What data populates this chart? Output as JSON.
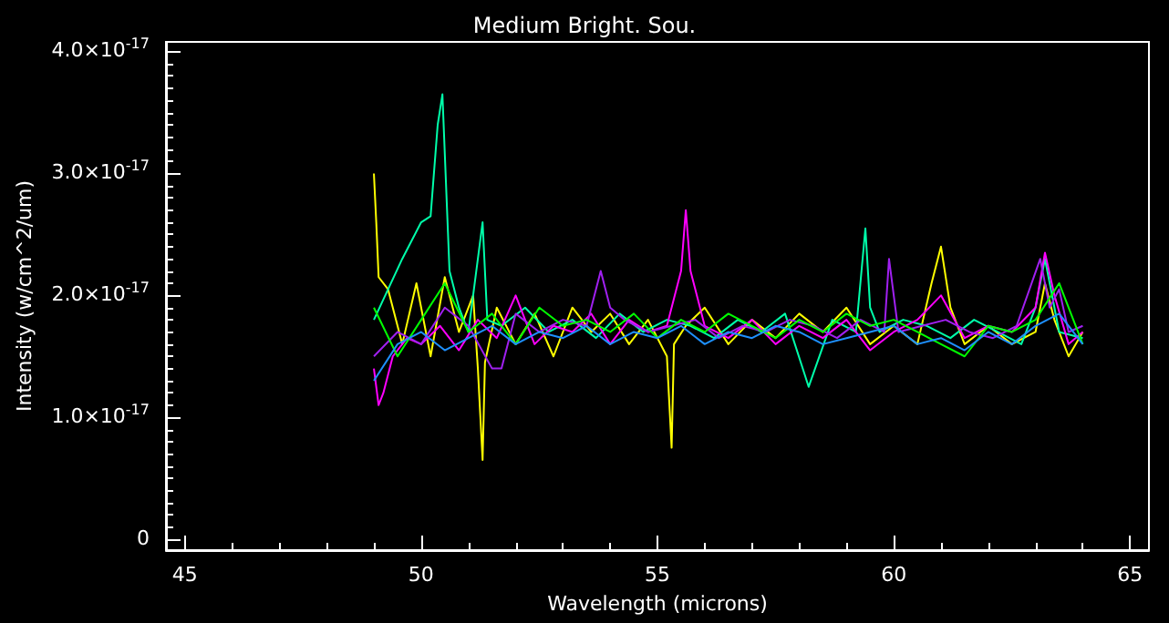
{
  "chart_data": {
    "type": "line",
    "title": "Medium Bright. Sou.",
    "xlabel": "Wavelength (microns)",
    "ylabel": "Intensity (w/cm^2/um)",
    "xlim": [
      44.6,
      65.4
    ],
    "xticks": [
      45,
      50,
      55,
      60,
      65
    ],
    "ylim": [
      -9e-19,
      4.08e-17
    ],
    "yticks": [
      0,
      {
        "value": 1e-17,
        "label": "1.0×10$^{-17}$"
      },
      {
        "value": 2e-17,
        "label": "2.0×10$^{-17}$"
      },
      {
        "value": 3e-17,
        "label": "3.0×10$^{-17}$"
      },
      {
        "value": 4e-17,
        "label": "4.0×10$^{-17}$"
      }
    ],
    "grid": false,
    "x": [
      49.0,
      49.5,
      50.0,
      50.5,
      51.0,
      51.5,
      52.0,
      52.5,
      53.0,
      53.5,
      54.0,
      54.5,
      55.0,
      55.5,
      56.0,
      56.5,
      57.0,
      57.5,
      58.0,
      58.5,
      59.0,
      59.5,
      60.0,
      60.5,
      61.0,
      61.5,
      62.0,
      62.5,
      63.0,
      63.5,
      64.0
    ],
    "series": [
      {
        "color": "#ffff00",
        "x": [
          49.0,
          49.05,
          49.1,
          49.3,
          49.6,
          49.9,
          50.2,
          50.5,
          50.8,
          51.1,
          51.2,
          51.3,
          51.35,
          51.6,
          52.0,
          52.4,
          52.8,
          53.2,
          53.6,
          54.0,
          54.4,
          54.8,
          55.2,
          55.3,
          55.35,
          55.6,
          56.0,
          56.5,
          57.0,
          57.5,
          58.0,
          58.5,
          59.0,
          59.5,
          60.0,
          60.5,
          60.8,
          61.0,
          61.2,
          61.5,
          62.0,
          62.5,
          63.0,
          63.2,
          63.4,
          63.7,
          64.0
        ],
        "values": [
          3e-17,
          2.6e-17,
          2.15e-17,
          2.05e-17,
          1.6e-17,
          2.1e-17,
          1.5e-17,
          2.15e-17,
          1.7e-17,
          2e-17,
          1.4e-17,
          6.5e-18,
          1.45e-17,
          1.9e-17,
          1.6e-17,
          1.85e-17,
          1.5e-17,
          1.9e-17,
          1.7e-17,
          1.85e-17,
          1.6e-17,
          1.8e-17,
          1.5e-17,
          7.5e-18,
          1.6e-17,
          1.75e-17,
          1.9e-17,
          1.6e-17,
          1.8e-17,
          1.65e-17,
          1.85e-17,
          1.7e-17,
          1.9e-17,
          1.6e-17,
          1.75e-17,
          1.6e-17,
          2.1e-17,
          2.4e-17,
          1.9e-17,
          1.6e-17,
          1.75e-17,
          1.6e-17,
          1.7e-17,
          2.1e-17,
          1.8e-17,
          1.5e-17,
          1.7e-17
        ]
      },
      {
        "color": "#00ffaa",
        "x": [
          49.0,
          49.3,
          49.6,
          50.0,
          50.2,
          50.35,
          50.45,
          50.6,
          50.8,
          51.0,
          51.3,
          51.4,
          51.7,
          52.2,
          52.7,
          53.2,
          53.7,
          54.2,
          54.7,
          55.2,
          55.7,
          56.2,
          56.7,
          57.2,
          57.7,
          58.2,
          58.7,
          59.2,
          59.4,
          59.5,
          59.7,
          60.2,
          60.7,
          61.2,
          61.7,
          62.2,
          62.7,
          63.0,
          63.2,
          63.5,
          64.0
        ],
        "values": [
          1.8e-17,
          2.05e-17,
          2.3e-17,
          2.6e-17,
          2.65e-17,
          3.4e-17,
          3.65e-17,
          2.2e-17,
          1.9e-17,
          1.7e-17,
          2.6e-17,
          1.8e-17,
          1.75e-17,
          1.9e-17,
          1.7e-17,
          1.8e-17,
          1.65e-17,
          1.85e-17,
          1.7e-17,
          1.8e-17,
          1.75e-17,
          1.65e-17,
          1.8e-17,
          1.7e-17,
          1.85e-17,
          1.25e-17,
          1.8e-17,
          1.7e-17,
          2.55e-17,
          1.9e-17,
          1.7e-17,
          1.8e-17,
          1.75e-17,
          1.65e-17,
          1.8e-17,
          1.7e-17,
          1.6e-17,
          1.9e-17,
          2.3e-17,
          1.7e-17,
          1.65e-17
        ]
      },
      {
        "color": "#ff00ff",
        "x": [
          49.0,
          49.1,
          49.2,
          49.4,
          49.7,
          50.0,
          50.4,
          50.8,
          51.2,
          51.6,
          52.0,
          52.4,
          52.8,
          53.2,
          53.6,
          54.0,
          54.4,
          54.8,
          55.2,
          55.5,
          55.6,
          55.7,
          56.0,
          56.5,
          57.0,
          57.5,
          58.0,
          58.5,
          59.0,
          59.5,
          60.0,
          60.5,
          61.0,
          61.5,
          62.0,
          62.5,
          63.0,
          63.2,
          63.4,
          63.7,
          64.0
        ],
        "values": [
          1.4e-17,
          1.1e-17,
          1.2e-17,
          1.5e-17,
          1.65e-17,
          1.6e-17,
          1.75e-17,
          1.55e-17,
          1.8e-17,
          1.65e-17,
          2e-17,
          1.6e-17,
          1.75e-17,
          1.7e-17,
          1.85e-17,
          1.6e-17,
          1.8e-17,
          1.7e-17,
          1.75e-17,
          2.2e-17,
          2.7e-17,
          2.2e-17,
          1.75e-17,
          1.65e-17,
          1.8e-17,
          1.6e-17,
          1.75e-17,
          1.65e-17,
          1.8e-17,
          1.55e-17,
          1.7e-17,
          1.8e-17,
          2e-17,
          1.65e-17,
          1.75e-17,
          1.7e-17,
          1.9e-17,
          2.35e-17,
          2e-17,
          1.6e-17,
          1.7e-17
        ]
      },
      {
        "color": "#a020f0",
        "x": [
          49.0,
          49.5,
          50.0,
          50.5,
          51.0,
          51.5,
          51.7,
          52.0,
          52.5,
          53.0,
          53.5,
          53.8,
          54.0,
          54.3,
          54.8,
          55.3,
          55.8,
          56.3,
          56.8,
          57.3,
          57.8,
          58.3,
          58.8,
          59.3,
          59.8,
          59.9,
          60.1,
          60.6,
          61.1,
          61.6,
          62.1,
          62.6,
          63.1,
          63.3,
          63.5,
          63.7,
          64.0
        ],
        "values": [
          1.5e-17,
          1.7e-17,
          1.6e-17,
          1.9e-17,
          1.75e-17,
          1.4e-17,
          1.4e-17,
          1.85e-17,
          1.7e-17,
          1.8e-17,
          1.75e-17,
          2.2e-17,
          1.9e-17,
          1.8e-17,
          1.7e-17,
          1.75e-17,
          1.8e-17,
          1.65e-17,
          1.75e-17,
          1.7e-17,
          1.8e-17,
          1.75e-17,
          1.65e-17,
          1.8e-17,
          1.7e-17,
          2.3e-17,
          1.7e-17,
          1.75e-17,
          1.8e-17,
          1.7e-17,
          1.65e-17,
          1.75e-17,
          2.3e-17,
          1.9e-17,
          2.05e-17,
          1.7e-17,
          1.75e-17
        ]
      },
      {
        "color": "#00ff00",
        "values": [
          1.9e-17,
          1.5e-17,
          1.8e-17,
          2.1e-17,
          1.7e-17,
          1.85e-17,
          1.6e-17,
          1.9e-17,
          1.75e-17,
          1.8e-17,
          1.7e-17,
          1.85e-17,
          1.65e-17,
          1.8e-17,
          1.7e-17,
          1.85e-17,
          1.75e-17,
          1.65e-17,
          1.8e-17,
          1.7e-17,
          1.85e-17,
          1.75e-17,
          1.8e-17,
          1.7e-17,
          1.6e-17,
          1.5e-17,
          1.75e-17,
          1.7e-17,
          1.8e-17,
          2.1e-17,
          1.6e-17
        ]
      },
      {
        "color": "#1e90ff",
        "values": [
          1.3e-17,
          1.6e-17,
          1.7e-17,
          1.55e-17,
          1.65e-17,
          1.75e-17,
          1.6e-17,
          1.7e-17,
          1.65e-17,
          1.75e-17,
          1.6e-17,
          1.7e-17,
          1.65e-17,
          1.75e-17,
          1.6e-17,
          1.7e-17,
          1.65e-17,
          1.75e-17,
          1.7e-17,
          1.6e-17,
          1.65e-17,
          1.7e-17,
          1.75e-17,
          1.6e-17,
          1.65e-17,
          1.55e-17,
          1.7e-17,
          1.6e-17,
          1.75e-17,
          1.85e-17,
          1.6e-17
        ]
      }
    ]
  }
}
